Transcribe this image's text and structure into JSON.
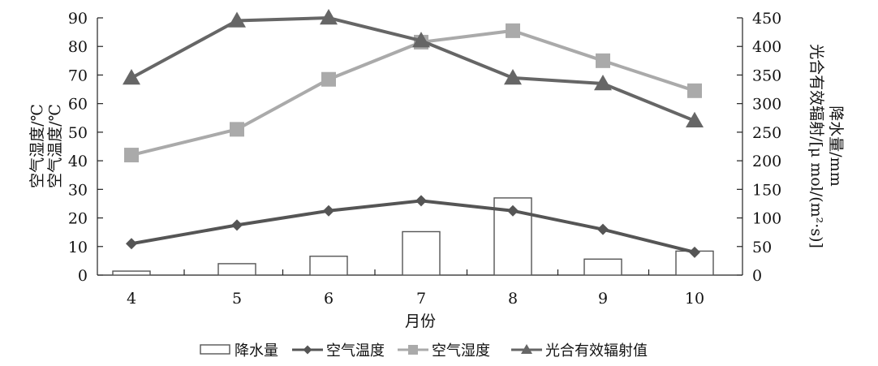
{
  "chart_data": {
    "type": "bar+line",
    "x_label": "月份",
    "categories": [
      "4",
      "5",
      "6",
      "7",
      "8",
      "9",
      "10"
    ],
    "left_axis": {
      "labels": [
        "空气湿度/℃",
        "空气温度/℃"
      ],
      "range": [
        0,
        90
      ],
      "ticks": [
        "0",
        "10",
        "20",
        "30",
        "40",
        "50",
        "60",
        "70",
        "80",
        "90"
      ]
    },
    "right_axis": {
      "labels": [
        "光合有效辐射/[μ mol/(m²·s)]",
        "降水量/mm"
      ],
      "range": [
        0,
        450
      ],
      "ticks": [
        "0",
        "50",
        "100",
        "150",
        "200",
        "250",
        "300",
        "350",
        "400",
        "450"
      ]
    },
    "series": [
      {
        "name": "降水量",
        "type": "bar",
        "axis": "right",
        "color": "#555555",
        "values": [
          7,
          20,
          33,
          76,
          135,
          28,
          42
        ]
      },
      {
        "name": "空气温度",
        "type": "line",
        "marker": "diamond",
        "axis": "left",
        "color": "#555555",
        "values": [
          11,
          17.5,
          22.5,
          26,
          22.5,
          16,
          8
        ]
      },
      {
        "name": "空气湿度",
        "type": "line",
        "marker": "square",
        "axis": "left",
        "color": "#aaaaaa",
        "values": [
          42,
          51,
          68.5,
          81.5,
          85.5,
          75,
          64.5
        ]
      },
      {
        "name": "光合有效辐射值",
        "type": "line",
        "marker": "triangle",
        "axis": "right",
        "color": "#666666",
        "values": [
          345,
          445,
          450,
          410,
          345,
          335,
          270
        ]
      }
    ],
    "legend_position": "bottom",
    "grid": false
  }
}
